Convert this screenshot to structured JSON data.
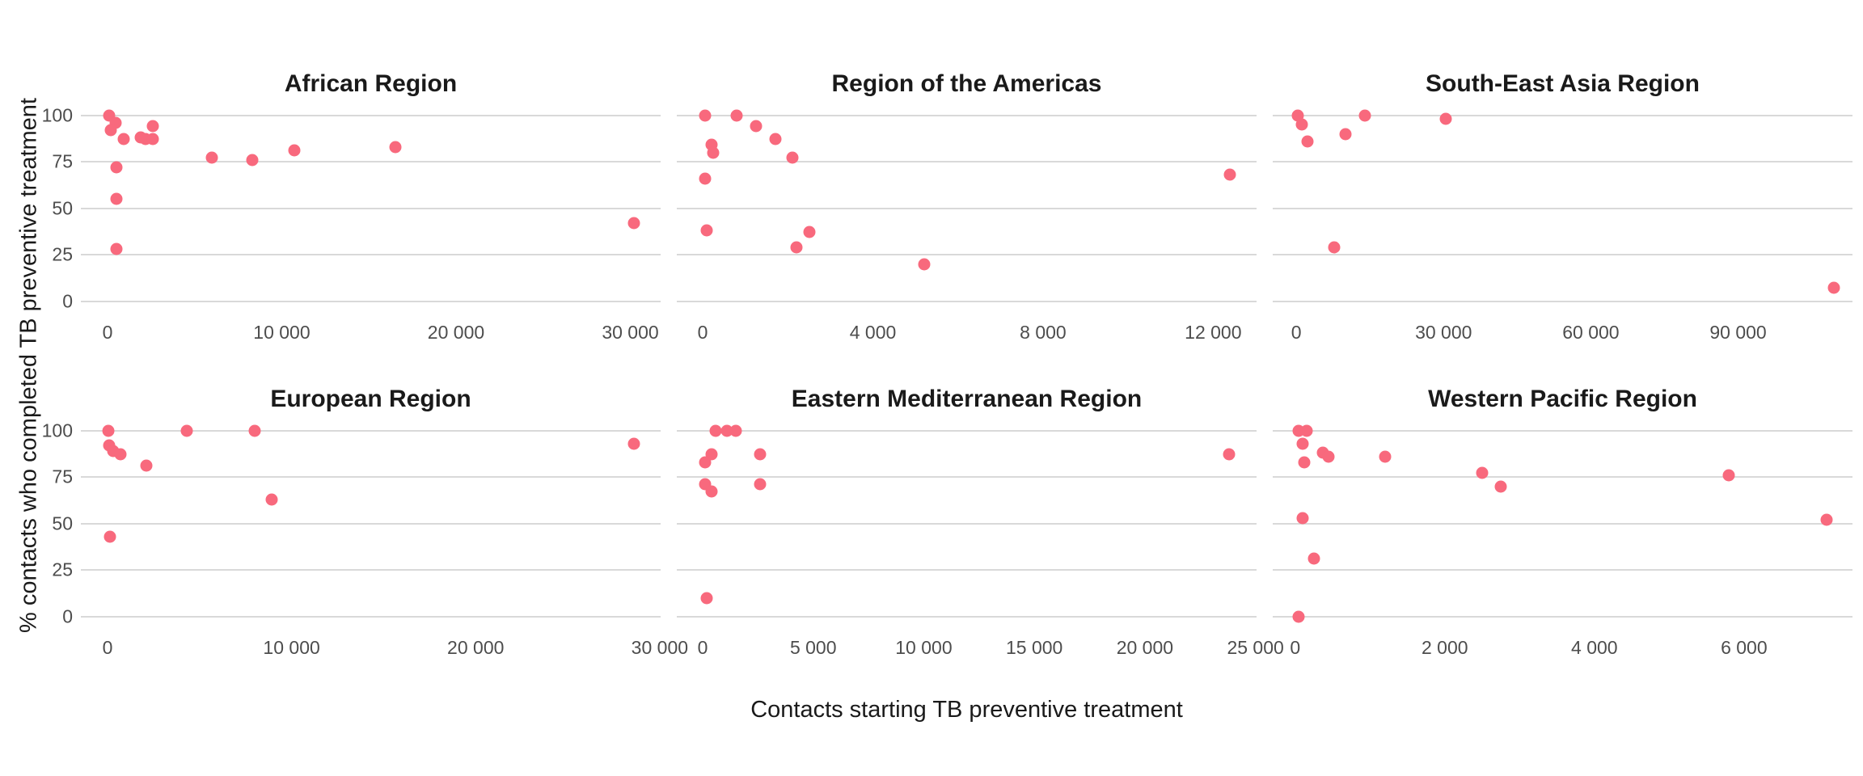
{
  "figure": {
    "x_axis_title": "Contacts starting TB preventive treatment",
    "y_axis_title": "% contacts who completed TB preventive treatment",
    "colors": {
      "point": "#f8697d",
      "gridline": "#d9d9d9",
      "title_text": "#1a1a1a",
      "tick_text": "#4d4d4d",
      "background": "#ffffff"
    }
  },
  "chart_data": {
    "type": "scatter",
    "title": "",
    "xlabel": "Contacts starting TB preventive treatment",
    "ylabel": "% contacts who completed TB preventive treatment",
    "grid": "horizontal-only",
    "legend": "none",
    "facet_layout": {
      "rows": 2,
      "cols": 3
    },
    "y_ticks": [
      {
        "v": 100,
        "label": "100"
      },
      {
        "v": 75,
        "label": "75"
      },
      {
        "v": 50,
        "label": "50"
      },
      {
        "v": 25,
        "label": "25"
      },
      {
        "v": 0,
        "label": "0"
      }
    ],
    "y_range": [
      -5,
      105
    ],
    "panels": [
      {
        "title": "African Region",
        "x_range": [
          -1530,
          31740
        ],
        "x_ticks": [
          {
            "v": 0,
            "label": "0"
          },
          {
            "v": 10000,
            "label": "10 000"
          },
          {
            "v": 20000,
            "label": "20 000"
          },
          {
            "v": 30000,
            "label": "30 000"
          }
        ],
        "points": [
          [
            100,
            100
          ],
          [
            460,
            96
          ],
          [
            200,
            92
          ],
          [
            930,
            87
          ],
          [
            1900,
            88
          ],
          [
            2200,
            87
          ],
          [
            2600,
            94
          ],
          [
            2600,
            87
          ],
          [
            500,
            72
          ],
          [
            500,
            55
          ],
          [
            500,
            28
          ],
          [
            6000,
            77
          ],
          [
            8300,
            76
          ],
          [
            10700,
            81
          ],
          [
            16500,
            83
          ],
          [
            30200,
            42
          ]
        ]
      },
      {
        "title": "Region of the Americas",
        "x_range": [
          -610,
          13020
        ],
        "x_ticks": [
          {
            "v": 0,
            "label": "0"
          },
          {
            "v": 4000,
            "label": "4 000"
          },
          {
            "v": 8000,
            "label": "8 000"
          },
          {
            "v": 12000,
            "label": "12 000"
          }
        ],
        "points": [
          [
            50,
            100
          ],
          [
            800,
            100
          ],
          [
            1260,
            94
          ],
          [
            1700,
            87
          ],
          [
            200,
            84
          ],
          [
            250,
            80
          ],
          [
            2100,
            77
          ],
          [
            60,
            66
          ],
          [
            100,
            38
          ],
          [
            2500,
            37
          ],
          [
            2200,
            29
          ],
          [
            5200,
            20
          ],
          [
            12400,
            68
          ]
        ]
      },
      {
        "title": "South-East Asia Region",
        "x_range": [
          -4800,
          113300
        ],
        "x_ticks": [
          {
            "v": 0,
            "label": "0"
          },
          {
            "v": 30000,
            "label": "30 000"
          },
          {
            "v": 60000,
            "label": "60 000"
          },
          {
            "v": 90000,
            "label": "90 000"
          }
        ],
        "points": [
          [
            300,
            100
          ],
          [
            1200,
            95
          ],
          [
            2300,
            86
          ],
          [
            10000,
            90
          ],
          [
            14000,
            100
          ],
          [
            30500,
            98
          ],
          [
            7800,
            29
          ],
          [
            109500,
            7
          ]
        ]
      },
      {
        "title": "European Region",
        "x_range": [
          -1450,
          30050
        ],
        "x_ticks": [
          {
            "v": 0,
            "label": "0"
          },
          {
            "v": 10000,
            "label": "10 000"
          },
          {
            "v": 20000,
            "label": "20 000"
          },
          {
            "v": 30000,
            "label": "30 000"
          }
        ],
        "points": [
          [
            50,
            100
          ],
          [
            100,
            92
          ],
          [
            300,
            89
          ],
          [
            700,
            87
          ],
          [
            2100,
            81
          ],
          [
            4300,
            100
          ],
          [
            8000,
            100
          ],
          [
            8900,
            63
          ],
          [
            150,
            43
          ],
          [
            28600,
            93
          ]
        ]
      },
      {
        "title": "Eastern Mediterranean Region",
        "x_range": [
          -1170,
          25050
        ],
        "x_ticks": [
          {
            "v": 0,
            "label": "0"
          },
          {
            "v": 5000,
            "label": "5 000"
          },
          {
            "v": 10000,
            "label": "10 000"
          },
          {
            "v": 15000,
            "label": "15 000"
          },
          {
            "v": 20000,
            "label": "20 000"
          },
          {
            "v": 25000,
            "label": "25 000"
          }
        ],
        "points": [
          [
            600,
            100
          ],
          [
            1100,
            100
          ],
          [
            1500,
            100
          ],
          [
            400,
            87
          ],
          [
            2600,
            87
          ],
          [
            100,
            83
          ],
          [
            100,
            71
          ],
          [
            400,
            67
          ],
          [
            2600,
            71
          ],
          [
            200,
            10
          ],
          [
            23800,
            87
          ]
        ]
      },
      {
        "title": "Western Pacific Region",
        "x_range": [
          -300,
          7450
        ],
        "x_ticks": [
          {
            "v": 0,
            "label": "0"
          },
          {
            "v": 2000,
            "label": "2 000"
          },
          {
            "v": 4000,
            "label": "4 000"
          },
          {
            "v": 6000,
            "label": "6 000"
          }
        ],
        "points": [
          [
            50,
            100
          ],
          [
            150,
            100
          ],
          [
            100,
            93
          ],
          [
            120,
            83
          ],
          [
            370,
            88
          ],
          [
            450,
            86
          ],
          [
            1200,
            86
          ],
          [
            2500,
            77
          ],
          [
            2750,
            70
          ],
          [
            100,
            53
          ],
          [
            250,
            31
          ],
          [
            50,
            0
          ],
          [
            5800,
            76
          ],
          [
            7100,
            52
          ]
        ]
      }
    ]
  }
}
